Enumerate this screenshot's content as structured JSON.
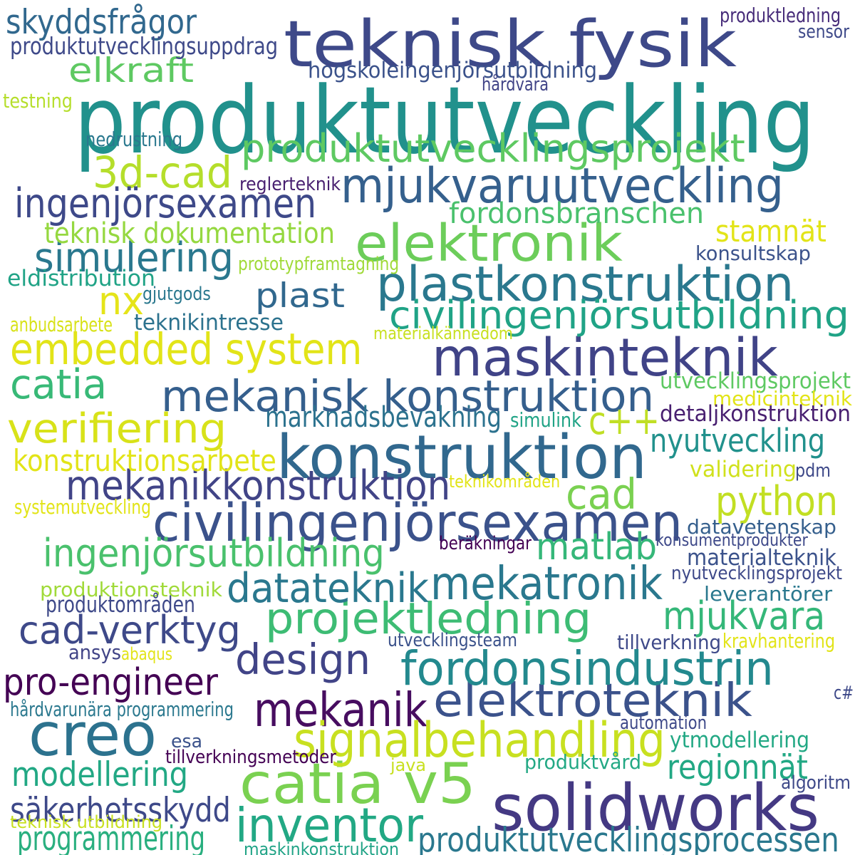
{
  "words": [
    {
      "id": "produktutveckling",
      "text": "produktutveckling",
      "color": "#21918c"
    },
    {
      "id": "teknisk-fysik",
      "text": "teknisk fysik",
      "color": "#3e4989"
    },
    {
      "id": "konstruktion",
      "text": "konstruktion",
      "color": "#31688e"
    },
    {
      "id": "creo",
      "text": "creo",
      "color": "#2c728e"
    },
    {
      "id": "solidworks",
      "text": "solidworks",
      "color": "#443983"
    },
    {
      "id": "catia-v5",
      "text": "catia v5",
      "color": "#7ad151"
    },
    {
      "id": "civilingenjorsexamen",
      "text": "civilingenjörsexamen",
      "color": "#3b528b"
    },
    {
      "id": "maskinteknik",
      "text": "maskinteknik",
      "color": "#404387"
    },
    {
      "id": "mjukvaruutveckling",
      "text": "mjukvaruutveckling",
      "color": "#35608d"
    },
    {
      "id": "elektronik",
      "text": "elektronik",
      "color": "#6ccd5a"
    },
    {
      "id": "plastkonstruktion",
      "text": "plastkonstruktion",
      "color": "#2a788e"
    },
    {
      "id": "mekanisk-konstruktion",
      "text": "mekanisk konstruktion",
      "color": "#355f8d"
    },
    {
      "id": "embedded-system",
      "text": "embedded system",
      "color": "#e2e418"
    },
    {
      "id": "mekanik",
      "text": "mekanik",
      "color": "#470d60"
    },
    {
      "id": "inventor",
      "text": "inventor",
      "color": "#22a884"
    },
    {
      "id": "signalbehandling",
      "text": "signalbehandling",
      "color": "#c8e020"
    },
    {
      "id": "elektroteknik",
      "text": "elektroteknik",
      "color": "#3b528b"
    },
    {
      "id": "fordonsindustrin",
      "text": "fordonsindustrin",
      "color": "#23898e"
    },
    {
      "id": "projektledning",
      "text": "projektledning",
      "color": "#3dbc74"
    },
    {
      "id": "mekatronik",
      "text": "mekatronik",
      "color": "#2a788e"
    },
    {
      "id": "3d-cad",
      "text": "3d-cad",
      "color": "#b5de2b"
    },
    {
      "id": "produktutvecklingsprojekt",
      "text": "produktutvecklingsprojekt",
      "color": "#5ec962"
    },
    {
      "id": "ingenjorsexamen",
      "text": "ingenjörsexamen",
      "color": "#3e4989"
    },
    {
      "id": "mekanikkonstruktion",
      "text": "mekanikkonstruktion",
      "color": "#414487"
    },
    {
      "id": "cad",
      "text": "cad",
      "color": "#7ad151"
    },
    {
      "id": "python",
      "text": "python",
      "color": "#c2df23"
    },
    {
      "id": "ingenjorsutbildning",
      "text": "ingenjörsutbildning",
      "color": "#4ac16d"
    },
    {
      "id": "datateknik",
      "text": "datateknik",
      "color": "#2a788e"
    },
    {
      "id": "cad-verktyg",
      "text": "cad-verktyg",
      "color": "#3e4989"
    },
    {
      "id": "design",
      "text": "design",
      "color": "#414487"
    },
    {
      "id": "mjukvara",
      "text": "mjukvara",
      "color": "#35b779"
    },
    {
      "id": "matlab",
      "text": "matlab",
      "color": "#35b779"
    },
    {
      "id": "civilingenjorsutbildning",
      "text": "civilingenjörsutbildning",
      "color": "#20a386"
    },
    {
      "id": "verifiering",
      "text": "verifiering",
      "color": "#d8e219"
    },
    {
      "id": "catia",
      "text": "catia",
      "color": "#38b977"
    },
    {
      "id": "simulering",
      "text": "simulering",
      "color": "#2a788e"
    },
    {
      "id": "nx",
      "text": "nx",
      "color": "#e5e419"
    },
    {
      "id": "c-plus-plus",
      "text": "c++",
      "color": "#c0df25"
    },
    {
      "id": "pro-engineer",
      "text": "pro-engineer",
      "color": "#440154"
    },
    {
      "id": "produktutvecklingsprocessen",
      "text": "produktutvecklingsprocessen",
      "color": "#2a788e"
    },
    {
      "id": "modellering",
      "text": "modellering",
      "color": "#22a884"
    },
    {
      "id": "programmering",
      "text": "programmering",
      "color": "#29af7f"
    },
    {
      "id": "sakerhetsskydd",
      "text": "säkerhetsskydd",
      "color": "#3e4989"
    },
    {
      "id": "regionnat",
      "text": "regionnät",
      "color": "#22a884"
    },
    {
      "id": "nyutveckling",
      "text": "nyutveckling",
      "color": "#21918c"
    },
    {
      "id": "elkraft",
      "text": "elkraft",
      "color": "#5ec962"
    },
    {
      "id": "skyddsfragor",
      "text": "skyddsfrågor",
      "color": "#31688e"
    },
    {
      "id": "fordonsbranschen",
      "text": "fordonsbranschen",
      "color": "#4ac16d"
    },
    {
      "id": "plast",
      "text": "plast",
      "color": "#31688e"
    },
    {
      "id": "marknadsbevakning",
      "text": "marknadsbevakning",
      "color": "#2c728e"
    },
    {
      "id": "konstruktionsarbete",
      "text": "konstruktionsarbete",
      "color": "#e2e418"
    },
    {
      "id": "stamnat",
      "text": "stamnät",
      "color": "#e2e418"
    },
    {
      "id": "teknisk-dokumentation",
      "text": "teknisk dokumentation",
      "color": "#95d840"
    },
    {
      "id": "produktutvecklingsuppdrag",
      "text": "produktutvecklingsuppdrag",
      "color": "#3e4989"
    },
    {
      "id": "hogskoleingenjorsutbildning",
      "text": "högskoleingenjörsutbildning",
      "color": "#3b528b"
    },
    {
      "id": "produktledning",
      "text": "produktledning",
      "color": "#472c7a"
    },
    {
      "id": "sensor",
      "text": "sensor",
      "color": "#3e4989"
    },
    {
      "id": "hardvara",
      "text": "hårdvara",
      "color": "#414487"
    },
    {
      "id": "testning",
      "text": "testning",
      "color": "#b5de2b"
    },
    {
      "id": "nedrustning",
      "text": "nedrustning",
      "color": "#2a788e"
    },
    {
      "id": "reglerteknik",
      "text": "reglerteknik",
      "color": "#481f70"
    },
    {
      "id": "konsultskap",
      "text": "konsultskap",
      "color": "#3b528b"
    },
    {
      "id": "prototypframtagning",
      "text": "prototypframtagning",
      "color": "#a0da39"
    },
    {
      "id": "eldistribution",
      "text": "eldistribution",
      "color": "#20a386"
    },
    {
      "id": "gjutgods",
      "text": "gjutgods",
      "color": "#2a788e"
    },
    {
      "id": "anbudsarbete",
      "text": "anbudsarbete",
      "color": "#d8e219"
    },
    {
      "id": "teknikintresse",
      "text": "teknikintresse",
      "color": "#2c728e"
    },
    {
      "id": "materialkannedom",
      "text": "materialkännedom",
      "color": "#c8e020"
    },
    {
      "id": "utvecklingsprojekt",
      "text": "utvecklingsprojekt",
      "color": "#5ec962"
    },
    {
      "id": "medicinteknik",
      "text": "medicinteknik",
      "color": "#e2e418"
    },
    {
      "id": "detaljkonstruktion",
      "text": "detaljkonstruktion",
      "color": "#481f70"
    },
    {
      "id": "simulink",
      "text": "simulink",
      "color": "#20a386"
    },
    {
      "id": "validering",
      "text": "validering",
      "color": "#d0e11c"
    },
    {
      "id": "pdm",
      "text": "pdm",
      "color": "#3e4989"
    },
    {
      "id": "teknikomraden",
      "text": "teknikområden",
      "color": "#e2e418"
    },
    {
      "id": "systemutveckling",
      "text": "systemutveckling",
      "color": "#e2e418"
    },
    {
      "id": "datavetenskap",
      "text": "datavetenskap",
      "color": "#355f8d"
    },
    {
      "id": "berakningar",
      "text": "beräkningar",
      "color": "#440154"
    },
    {
      "id": "konsumentprodukter",
      "text": "konsumentprodukter",
      "color": "#3e4989"
    },
    {
      "id": "materialteknik",
      "text": "materialteknik",
      "color": "#3b528b"
    },
    {
      "id": "nyutvecklingsprojekt",
      "text": "nyutvecklingsprojekt",
      "color": "#3e4989"
    },
    {
      "id": "produktionsteknik",
      "text": "produktionsteknik",
      "color": "#a0da39"
    },
    {
      "id": "produktomraden",
      "text": "produktområden",
      "color": "#3e4989"
    },
    {
      "id": "leverantorer",
      "text": "leverantörer",
      "color": "#2a788e"
    },
    {
      "id": "utvecklingsteam",
      "text": "utvecklingsteam",
      "color": "#3b528b"
    },
    {
      "id": "tillverkning",
      "text": "tillverkning",
      "color": "#3e4989"
    },
    {
      "id": "kravhantering",
      "text": "kravhantering",
      "color": "#e2e418"
    },
    {
      "id": "ansys",
      "text": "ansys",
      "color": "#414487"
    },
    {
      "id": "abaqus",
      "text": "abaqus",
      "color": "#e2e418"
    },
    {
      "id": "c-sharp",
      "text": "c#",
      "color": "#3e4989"
    },
    {
      "id": "hardvarunara-programmering",
      "text": "hårdvarunära programmering",
      "color": "#2a788e"
    },
    {
      "id": "automation",
      "text": "automation",
      "color": "#3e4989"
    },
    {
      "id": "esa",
      "text": "esa",
      "color": "#3b528b"
    },
    {
      "id": "ytmodellering",
      "text": "ytmodellering",
      "color": "#22a884"
    },
    {
      "id": "tillverkningsmetoder",
      "text": "tillverkningsmetoder",
      "color": "#440154"
    },
    {
      "id": "java",
      "text": "java",
      "color": "#c8e020"
    },
    {
      "id": "produktvard",
      "text": "produktvård",
      "color": "#22a884"
    },
    {
      "id": "algoritm",
      "text": "algoritm",
      "color": "#3e4989"
    },
    {
      "id": "teknisk-utbildning",
      "text": "teknisk utbildning",
      "color": "#c8e020"
    },
    {
      "id": "maskinkonstruktion",
      "text": "maskinkonstruktion",
      "color": "#20a386"
    }
  ]
}
